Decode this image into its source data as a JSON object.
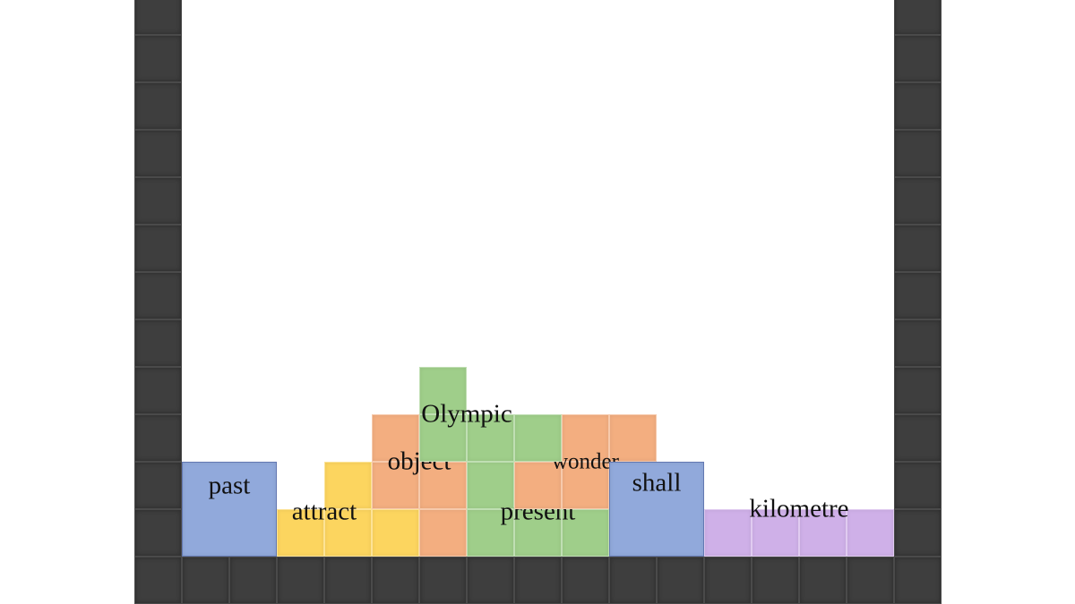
{
  "board": {
    "columns": 15,
    "rows": 11
  },
  "colors": {
    "wall": "#3c3c3c",
    "blue": "#8fa8db",
    "yellow": "#fcd55f",
    "orange": "#f3ae80",
    "green": "#9fce8a",
    "purple": "#cfb0e8"
  },
  "pieces": [
    {
      "word": "past",
      "color": "#91a9db",
      "cells": [
        [
          0,
          0
        ],
        [
          1,
          0
        ],
        [
          0,
          1
        ],
        [
          1,
          1
        ]
      ],
      "merged": true
    },
    {
      "word": "attract",
      "color": "#fcd55f",
      "cells": [
        [
          2,
          0
        ],
        [
          3,
          0
        ],
        [
          4,
          0
        ],
        [
          3,
          1
        ]
      ]
    },
    {
      "word": "object",
      "color": "#f3ae80",
      "cells": [
        [
          5,
          0
        ],
        [
          4,
          1
        ],
        [
          5,
          1
        ],
        [
          4,
          2
        ]
      ]
    },
    {
      "word": "present",
      "color": "#9fce8a",
      "cells": [
        [
          6,
          0
        ],
        [
          7,
          0
        ],
        [
          8,
          0
        ],
        [
          6,
          1
        ]
      ]
    },
    {
      "word": "wonder",
      "color": "#f3ae80",
      "cells": [
        [
          7,
          1
        ],
        [
          8,
          1
        ],
        [
          8,
          2
        ],
        [
          9,
          2
        ]
      ]
    },
    {
      "word": "Olympic",
      "color": "#9fce8a",
      "cells": [
        [
          5,
          2
        ],
        [
          6,
          2
        ],
        [
          7,
          2
        ],
        [
          5,
          3
        ]
      ]
    },
    {
      "word": "shall",
      "color": "#91a9db",
      "cells": [
        [
          9,
          0
        ],
        [
          10,
          0
        ],
        [
          9,
          1
        ],
        [
          10,
          1
        ]
      ],
      "merged": true
    },
    {
      "word": "kilometre",
      "color": "#cfb0e8",
      "cells": [
        [
          11,
          0
        ],
        [
          12,
          0
        ],
        [
          13,
          0
        ],
        [
          14,
          0
        ]
      ]
    }
  ]
}
